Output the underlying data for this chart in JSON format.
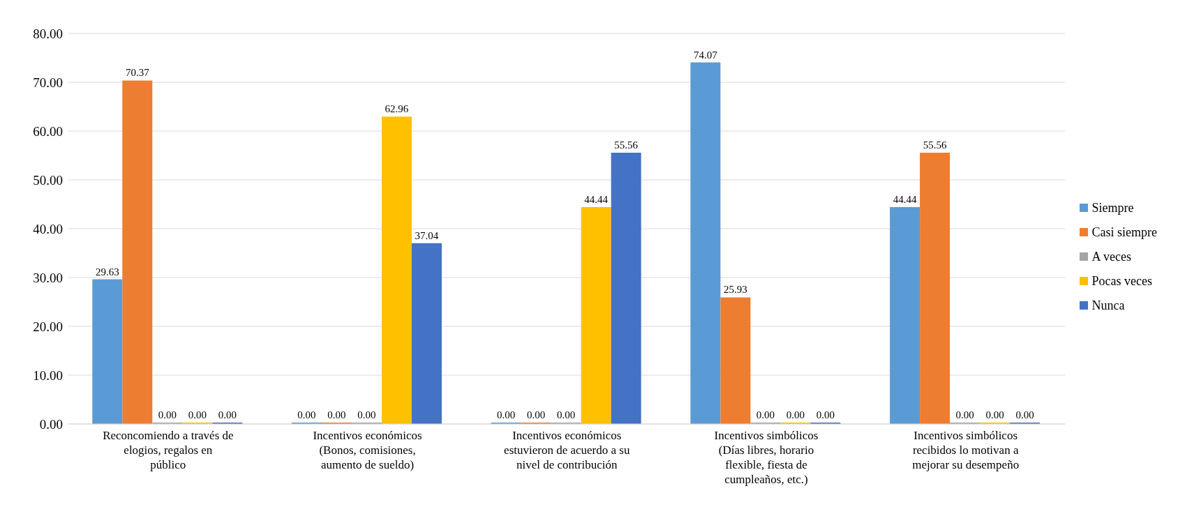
{
  "chart_data": {
    "type": "bar",
    "categories": [
      "Reconcomiendo a través de elogios, regalos en público",
      "Incentivos económicos (Bonos, comisiones, aumento de sueldo)",
      "Incentivos económicos estuvieron de acuerdo a su nivel de contribución",
      "Incentivos simbólicos (Días libres, horario flexible, fiesta de cumpleaños, etc.)",
      "Incentivos  simbólicos recibidos lo motivan a mejorar su desempeño"
    ],
    "series": [
      {
        "name": "Siempre",
        "color": "#5b9bd5",
        "values": [
          29.63,
          0,
          0,
          74.07,
          44.44
        ],
        "value_labels": [
          "29.63",
          "0.00",
          "0.00",
          "74.07",
          "44.44"
        ]
      },
      {
        "name": "Casi siempre",
        "color": "#ed7d31",
        "values": [
          70.37,
          0,
          0,
          25.93,
          55.56
        ],
        "value_labels": [
          "70.37",
          "0.00",
          "0.00",
          "25.93",
          "55.56"
        ]
      },
      {
        "name": "A veces",
        "color": "#a5a5a5",
        "values": [
          0,
          0,
          0,
          0,
          0
        ],
        "value_labels": [
          "0.00",
          "0.00",
          "0.00",
          "0.00",
          "0.00"
        ]
      },
      {
        "name": "Pocas veces",
        "color": "#ffc000",
        "values": [
          0,
          62.96,
          44.44,
          0,
          0
        ],
        "value_labels": [
          "0.00",
          "62.96",
          "44.44",
          "0.00",
          "0.00"
        ]
      },
      {
        "name": "Nunca",
        "color": "#4472c4",
        "values": [
          0,
          37.04,
          55.56,
          0,
          0
        ],
        "value_labels": [
          "0.00",
          "37.04",
          "55.56",
          "0.00",
          "0.00"
        ]
      }
    ],
    "ylim": [
      0,
      80
    ],
    "yticks": [
      {
        "value": 0,
        "label": "0.00"
      },
      {
        "value": 10,
        "label": "10.00"
      },
      {
        "value": 20,
        "label": "20.00"
      },
      {
        "value": 30,
        "label": "30.00"
      },
      {
        "value": 40,
        "label": "40.00"
      },
      {
        "value": 50,
        "label": "50.00"
      },
      {
        "value": 60,
        "label": "60.00"
      },
      {
        "value": 70,
        "label": "70.00"
      },
      {
        "value": 80,
        "label": "80.00"
      }
    ],
    "grid": "y",
    "legend": "right"
  }
}
